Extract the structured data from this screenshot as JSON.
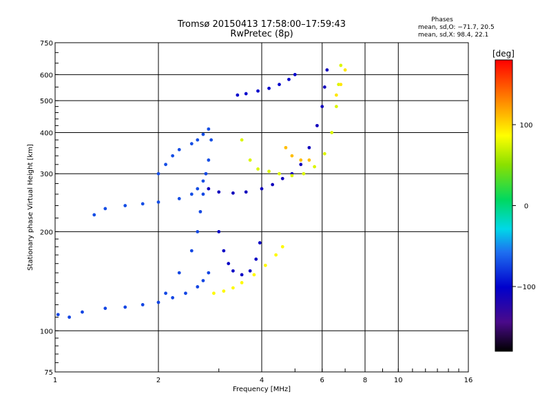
{
  "title": {
    "line1": "Tromsø 20150413 17:58:00–17:59:43",
    "line2": "RwPretec (8p)"
  },
  "stats": {
    "heading": "Phases",
    "o_line": "mean, sd,O: −71.7, 20.5",
    "x_line": "mean, sd,X:  98.4, 22.1"
  },
  "colorbar": {
    "unit_label": "[deg]",
    "tick_labels": [
      "100",
      "0",
      "−100"
    ],
    "ticks": [
      100,
      0,
      -100
    ],
    "range": [
      -180,
      180
    ]
  },
  "chart_data": {
    "type": "scatter",
    "title": "Tromsø 20150413 17:58:00–17:59:43 RwPretec (8p)",
    "xlabel": "Frequency [MHz]",
    "ylabel": "Stationary phase Virtual Height [km]",
    "xscale": "log",
    "yscale": "log",
    "xlim": [
      1,
      16
    ],
    "ylim": [
      75,
      750
    ],
    "x_ticks": [
      1,
      2,
      4,
      6,
      8,
      10,
      16
    ],
    "x_tick_labels": [
      "1",
      "2",
      "4",
      "6",
      "8",
      "10",
      "16"
    ],
    "y_ticks": [
      75,
      100,
      200,
      300,
      400,
      500,
      600,
      750
    ],
    "y_tick_labels": [
      "75",
      "100",
      "200",
      "300",
      "400",
      "500",
      "600",
      "750"
    ],
    "grid": true,
    "color_encodes": "phase [deg]",
    "traces": [
      {
        "points": [
          [
            1.02,
            112
          ],
          [
            1.1,
            110
          ],
          [
            1.2,
            114
          ],
          [
            1.4,
            117
          ],
          [
            1.6,
            118
          ],
          [
            1.8,
            120
          ],
          [
            2.0,
            122
          ],
          [
            2.2,
            126
          ],
          [
            2.4,
            130
          ],
          [
            2.6,
            136
          ],
          [
            2.7,
            142
          ],
          [
            2.8,
            150
          ]
        ],
        "phase": -75
      },
      {
        "points": [
          [
            1.3,
            225
          ],
          [
            1.4,
            235
          ],
          [
            1.6,
            240
          ],
          [
            1.8,
            243
          ],
          [
            2.0,
            246
          ],
          [
            2.3,
            252
          ],
          [
            2.5,
            260
          ],
          [
            2.6,
            270
          ],
          [
            2.7,
            285
          ],
          [
            2.75,
            300
          ],
          [
            2.8,
            330
          ],
          [
            2.85,
            380
          ]
        ],
        "phase": -72
      },
      {
        "points": [
          [
            2.0,
            300
          ],
          [
            2.1,
            320
          ],
          [
            2.2,
            340
          ],
          [
            2.3,
            355
          ],
          [
            2.5,
            370
          ],
          [
            2.6,
            380
          ],
          [
            2.7,
            395
          ],
          [
            2.8,
            410
          ]
        ],
        "phase": -72
      },
      {
        "points": [
          [
            2.1,
            130
          ],
          [
            2.3,
            150
          ],
          [
            2.5,
            175
          ],
          [
            2.6,
            200
          ],
          [
            2.65,
            230
          ],
          [
            2.7,
            260
          ],
          [
            2.75,
            300
          ]
        ],
        "phase": -74
      },
      {
        "points": [
          [
            2.8,
            270
          ],
          [
            3.0,
            264
          ],
          [
            3.3,
            262
          ],
          [
            3.6,
            264
          ],
          [
            4.0,
            270
          ],
          [
            4.3,
            278
          ],
          [
            4.6,
            290
          ],
          [
            4.9,
            300
          ],
          [
            5.2,
            320
          ],
          [
            5.5,
            360
          ],
          [
            5.8,
            420
          ],
          [
            6.0,
            480
          ],
          [
            6.1,
            550
          ],
          [
            6.2,
            620
          ]
        ],
        "phase": -110
      },
      {
        "points": [
          [
            3.0,
            200
          ],
          [
            3.1,
            175
          ],
          [
            3.2,
            160
          ],
          [
            3.3,
            152
          ],
          [
            3.5,
            148
          ],
          [
            3.7,
            152
          ],
          [
            3.85,
            165
          ],
          [
            3.95,
            185
          ]
        ],
        "phase": -105
      },
      {
        "points": [
          [
            3.4,
            520
          ],
          [
            3.6,
            525
          ],
          [
            3.9,
            535
          ],
          [
            4.2,
            545
          ],
          [
            4.5,
            560
          ],
          [
            4.8,
            580
          ],
          [
            5.0,
            600
          ]
        ],
        "phase": -100
      },
      {
        "points": [
          [
            3.5,
            380
          ],
          [
            3.7,
            330
          ],
          [
            3.9,
            310
          ],
          [
            4.2,
            305
          ],
          [
            4.5,
            300
          ],
          [
            4.9,
            296
          ],
          [
            5.3,
            300
          ],
          [
            5.7,
            315
          ],
          [
            6.1,
            345
          ],
          [
            6.4,
            400
          ],
          [
            6.6,
            480
          ],
          [
            6.7,
            560
          ],
          [
            6.8,
            640
          ]
        ],
        "phase": 75
      },
      {
        "points": [
          [
            2.9,
            130
          ],
          [
            3.1,
            132
          ],
          [
            3.3,
            135
          ],
          [
            3.5,
            140
          ],
          [
            3.8,
            148
          ],
          [
            4.1,
            158
          ],
          [
            4.4,
            170
          ],
          [
            4.6,
            180
          ]
        ],
        "phase": 88
      },
      {
        "points": [
          [
            4.7,
            360
          ],
          [
            4.9,
            340
          ],
          [
            5.2,
            330
          ],
          [
            5.5,
            330
          ]
        ],
        "phase": 110
      },
      {
        "points": [
          [
            6.6,
            520
          ],
          [
            6.8,
            560
          ],
          [
            7.0,
            620
          ]
        ],
        "phase": 95
      }
    ]
  }
}
